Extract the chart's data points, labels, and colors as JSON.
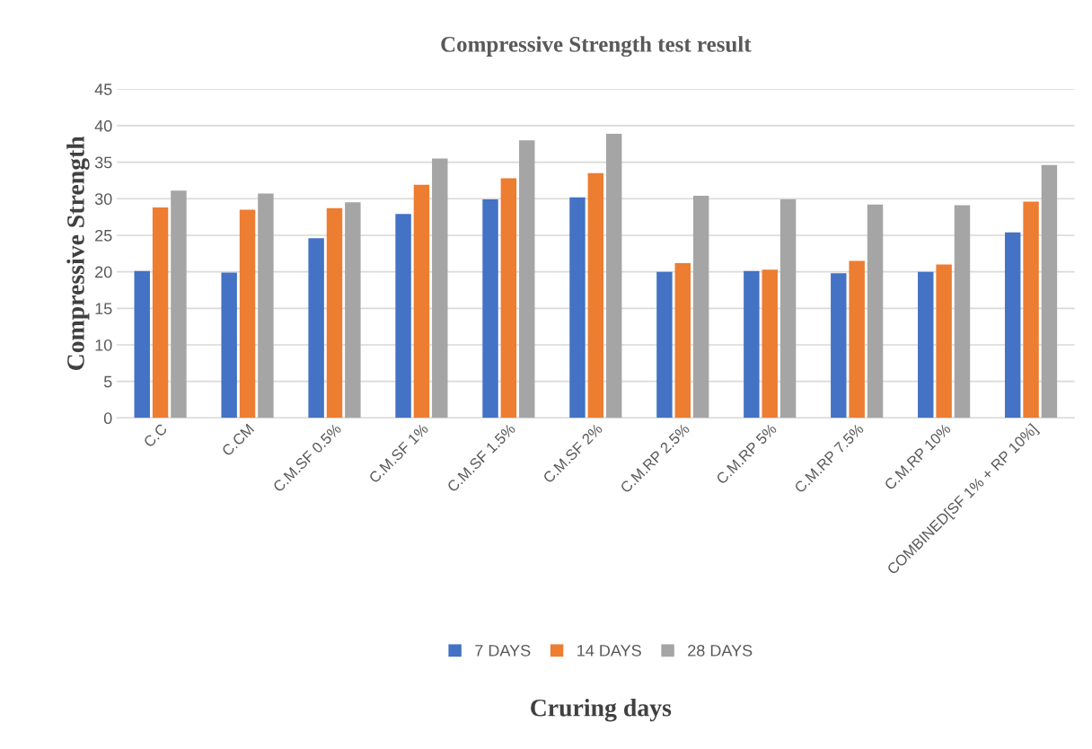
{
  "chart_data": {
    "type": "bar",
    "title": "Compressive Strength test result",
    "xlabel": "Cruring days",
    "ylabel": "Compressive Strength",
    "categories": [
      "C.C",
      "C.CM",
      "C.M.SF 0.5%",
      "C.M.SF 1%",
      "C.M.SF 1.5%",
      "C.M.SF 2%",
      "C.M.RP 2.5%",
      "C.M.RP 5%",
      "C.M.RP 7.5%",
      "C.M.RP 10%",
      "COMBINED[SF 1% + RP 10%]"
    ],
    "series": [
      {
        "name": "7 DAYS",
        "color": "#4472c4",
        "values": [
          20.1,
          19.9,
          24.6,
          27.9,
          29.9,
          30.2,
          20.0,
          20.1,
          19.8,
          20.0,
          25.4
        ]
      },
      {
        "name": "14 DAYS",
        "color": "#ed7d31",
        "values": [
          28.8,
          28.5,
          28.7,
          31.9,
          32.8,
          33.5,
          21.2,
          20.3,
          21.5,
          21.0,
          29.6
        ]
      },
      {
        "name": "28 DAYS",
        "color": "#a5a5a5",
        "values": [
          31.1,
          30.7,
          29.5,
          35.5,
          38.0,
          38.9,
          30.4,
          29.9,
          29.2,
          29.1,
          34.6
        ]
      }
    ],
    "ylim": [
      0,
      45
    ],
    "yticks": [
      0,
      5,
      10,
      15,
      20,
      25,
      30,
      35,
      40,
      45
    ],
    "grid": "y",
    "legend": "bottom"
  }
}
